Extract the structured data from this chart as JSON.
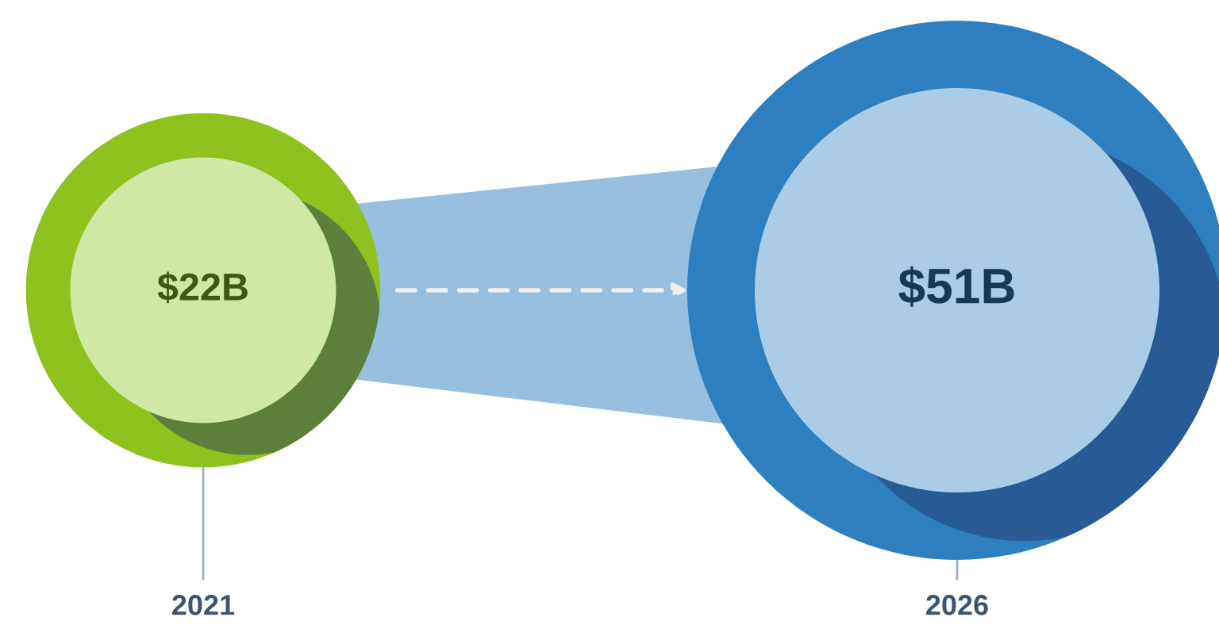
{
  "chart_data": {
    "type": "other",
    "categories": [
      "2021",
      "2026"
    ],
    "values": [
      22,
      51
    ],
    "value_labels": [
      "$22B",
      "$51B"
    ]
  }
}
